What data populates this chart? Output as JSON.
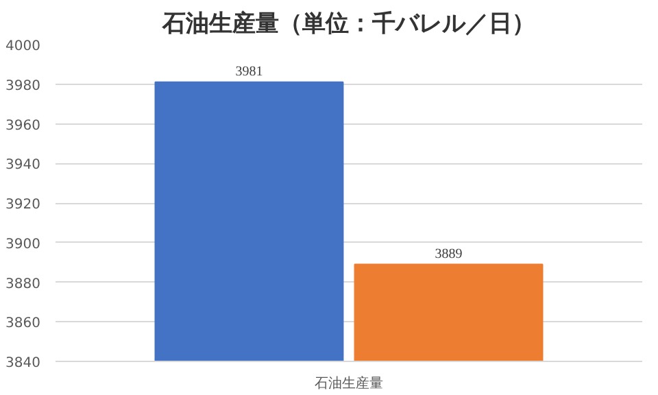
{
  "chart_data": {
    "type": "bar",
    "title": "石油生産量（単位：千バレル／日）",
    "categories": [
      "石油生産量"
    ],
    "series": [
      {
        "color": "#4472c4",
        "values": [
          3981
        ]
      },
      {
        "color": "#ed7d31",
        "values": [
          3889
        ]
      }
    ],
    "ylim": [
      3840,
      4000
    ],
    "yticks": [
      3840,
      3860,
      3880,
      3900,
      3920,
      3940,
      3960,
      3980,
      4000
    ],
    "grid": "y",
    "data_labels": true
  }
}
